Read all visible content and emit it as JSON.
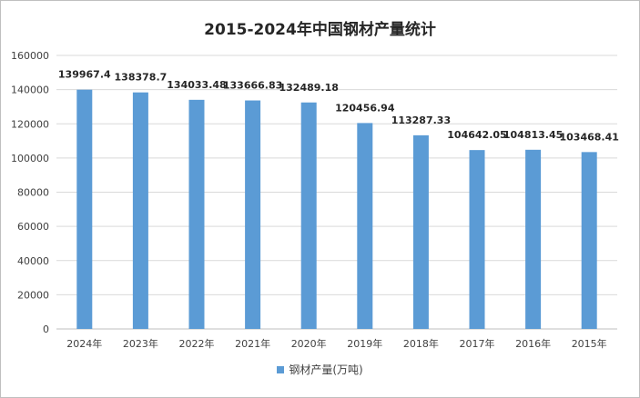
{
  "chart_data": {
    "type": "bar",
    "title": "2015-2024年中国钢材产量统计",
    "categories": [
      "2024年",
      "2023年",
      "2022年",
      "2021年",
      "2020年",
      "2019年",
      "2018年",
      "2017年",
      "2016年",
      "2015年"
    ],
    "series": [
      {
        "name": "钢材产量(万吨)",
        "values": [
          139967.4,
          138378.7,
          134033.48,
          133666.83,
          132489.18,
          120456.94,
          113287.33,
          104642.05,
          104813.45,
          103468.41
        ],
        "labels": [
          "139967.4",
          "138378.7",
          "134033.48",
          "133666.83",
          "132489.18",
          "120456.94",
          "113287.33",
          "104642.05",
          "104813.45",
          "103468.41"
        ]
      }
    ],
    "yticks": [
      "0",
      "20000",
      "40000",
      "60000",
      "80000",
      "100000",
      "120000",
      "140000",
      "160000"
    ],
    "ylim": [
      0,
      160000
    ],
    "grid": true,
    "legend_position": "bottom",
    "bar_color": "#5b9bd5"
  }
}
